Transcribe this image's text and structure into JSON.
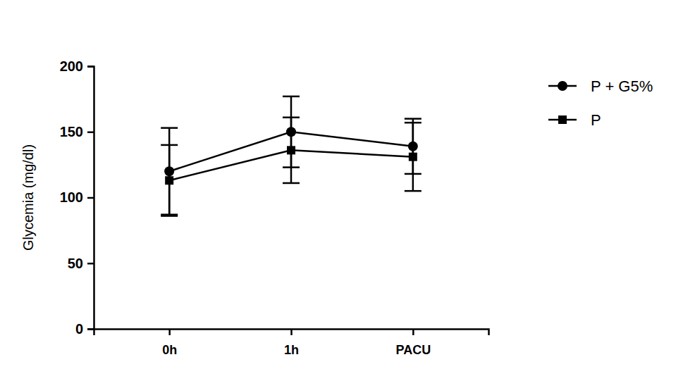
{
  "chart_data": {
    "type": "line",
    "y_label": "Glycemia (mg/dl)",
    "categories": [
      "0h",
      "1h",
      "PACU"
    ],
    "series": [
      {
        "name": "P + G5%",
        "color": "#000000",
        "marker": "circle",
        "values": [
          120,
          150,
          139
        ],
        "error": [
          33,
          27,
          21
        ]
      },
      {
        "name": "P",
        "color": "#000000",
        "marker": "square",
        "values": [
          113,
          136,
          131
        ],
        "error": [
          27,
          25,
          26
        ]
      }
    ],
    "ylim": [
      0,
      200
    ],
    "yticks": [
      0,
      50,
      100,
      150,
      200
    ],
    "grid": false,
    "legend": "upper right"
  }
}
